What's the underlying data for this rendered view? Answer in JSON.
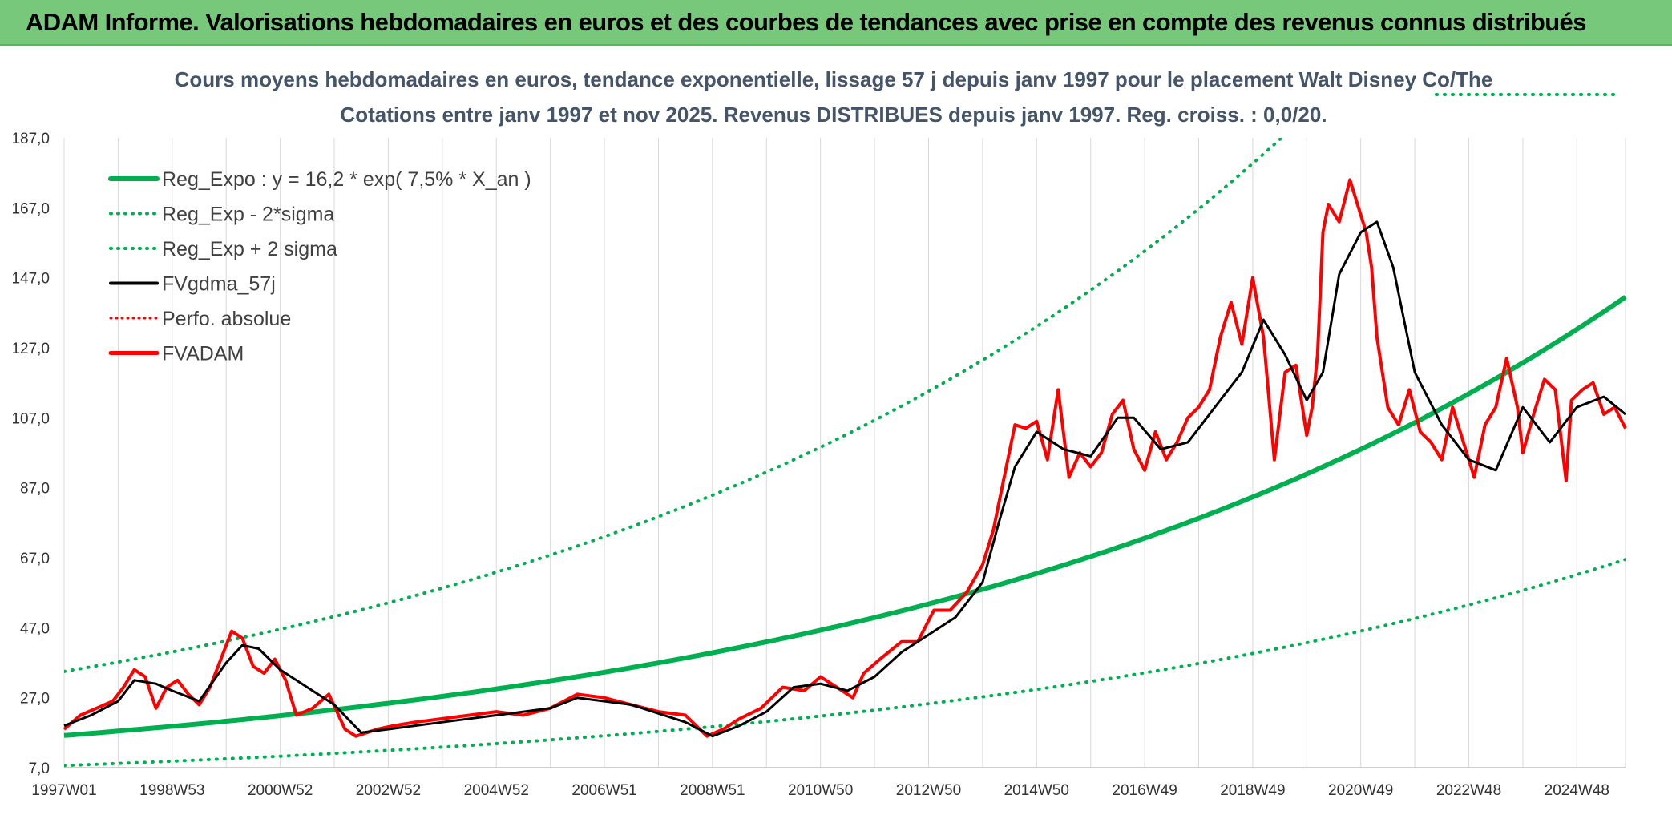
{
  "header": {
    "banner": "ADAM Informe. Valorisations hebdomadaires en euros et des courbes de tendances avec prise en compte des revenus connus distribués"
  },
  "colors": {
    "banner_bg": "#77c87a",
    "green": "#00b050",
    "black": "#000000",
    "red": "#ff0000",
    "grid": "#d9d9d9"
  },
  "chart_data": {
    "type": "line",
    "title": "Cours moyens hebdomadaires en euros, tendance exponentielle, lissage 57 j depuis janv 1997 pour le placement Walt Disney Co/The",
    "subtitle": "Cotations entre janv 1997 et nov 2025. Revenus DISTRIBUES depuis janv 1997. Reg. croiss. : 0,0/20.",
    "xlabel": "",
    "ylabel": "",
    "xlim": [
      1997.0,
      2025.9
    ],
    "ylim": [
      7,
      187
    ],
    "y_ticks": [
      7,
      27,
      47,
      67,
      87,
      107,
      127,
      147,
      167,
      187
    ],
    "y_tick_labels": [
      "7,0",
      "27,0",
      "47,0",
      "67,0",
      "87,0",
      "107,0",
      "127,0",
      "147,0",
      "167,0",
      "187,0"
    ],
    "x_ticks": [
      1997.0,
      1999.0,
      2001.0,
      2003.0,
      2005.0,
      2007.0,
      2009.0,
      2011.0,
      2013.0,
      2015.0,
      2017.0,
      2019.0,
      2021.0,
      2023.0,
      2025.0
    ],
    "x_tick_labels": [
      "1997W01",
      "1998W53",
      "2000W52",
      "2002W52",
      "2004W52",
      "2006W51",
      "2008W51",
      "2010W50",
      "2012W50",
      "2014W50",
      "2016W49",
      "2018W49",
      "2020W49",
      "2022W48",
      "2024W48"
    ],
    "legend": [
      "Reg_Expo : y = 16,2 * exp( 7,5% *  X_an )",
      "Reg_Exp - 2*sigma",
      "Reg_Exp + 2 sigma",
      "FVgdma_57j",
      "Perfo. absolue",
      "FVADAM"
    ],
    "legend_position": "top-left",
    "grid": "vertical",
    "regression": {
      "a": 16.2,
      "rate": 0.075,
      "lower_factor": 0.47,
      "upper_factor": 2.13
    },
    "series": [
      {
        "name": "FVADAM",
        "x": [
          1997.0,
          1997.3,
          1997.6,
          1997.9,
          1998.1,
          1998.3,
          1998.5,
          1998.7,
          1998.9,
          1999.1,
          1999.3,
          1999.5,
          1999.7,
          1999.9,
          2000.1,
          2000.3,
          2000.5,
          2000.7,
          2000.9,
          2001.1,
          2001.3,
          2001.6,
          2001.9,
          2002.2,
          2002.4,
          2002.6,
          2002.8,
          2003.1,
          2003.5,
          2004.0,
          2004.5,
          2005.0,
          2005.5,
          2006.0,
          2006.5,
          2007.0,
          2007.5,
          2008.0,
          2008.5,
          2008.9,
          2009.2,
          2009.5,
          2009.9,
          2010.3,
          2010.7,
          2011.0,
          2011.3,
          2011.6,
          2011.8,
          2012.1,
          2012.5,
          2012.8,
          2013.1,
          2013.4,
          2013.7,
          2014.0,
          2014.2,
          2014.4,
          2014.6,
          2014.8,
          2015.0,
          2015.2,
          2015.4,
          2015.6,
          2015.8,
          2016.0,
          2016.2,
          2016.4,
          2016.6,
          2016.8,
          2017.0,
          2017.2,
          2017.4,
          2017.6,
          2017.8,
          2018.0,
          2018.2,
          2018.4,
          2018.6,
          2018.8,
          2019.0,
          2019.2,
          2019.4,
          2019.6,
          2019.8,
          2020.0,
          2020.1,
          2020.2,
          2020.3,
          2020.4,
          2020.6,
          2020.8,
          2021.0,
          2021.1,
          2021.2,
          2021.3,
          2021.5,
          2021.7,
          2021.9,
          2022.1,
          2022.3,
          2022.5,
          2022.7,
          2022.9,
          2023.1,
          2023.3,
          2023.5,
          2023.7,
          2023.9,
          2024.0,
          2024.2,
          2024.4,
          2024.6,
          2024.8,
          2024.9,
          2025.1,
          2025.3,
          2025.5,
          2025.7,
          2025.9
        ],
        "values": [
          18,
          22,
          24,
          26,
          30,
          35,
          33,
          24,
          30,
          32,
          28,
          25,
          30,
          38,
          46,
          44,
          36,
          34,
          38,
          32,
          22,
          24,
          28,
          18,
          16,
          17,
          18,
          19,
          20,
          21,
          22,
          23,
          22,
          24,
          28,
          27,
          25,
          23,
          22,
          16,
          18,
          21,
          24,
          30,
          29,
          33,
          30,
          27,
          34,
          38,
          43,
          43,
          52,
          52,
          57,
          65,
          75,
          90,
          105,
          104,
          106,
          95,
          115,
          90,
          97,
          93,
          97,
          108,
          112,
          98,
          92,
          103,
          95,
          100,
          107,
          110,
          115,
          130,
          140,
          128,
          147,
          130,
          95,
          120,
          122,
          102,
          110,
          125,
          160,
          168,
          163,
          175,
          165,
          160,
          150,
          130,
          110,
          105,
          115,
          103,
          100,
          95,
          110,
          100,
          90,
          105,
          110,
          124,
          110,
          97,
          108,
          118,
          115,
          89,
          112,
          115,
          117,
          108,
          110,
          104
        ]
      },
      {
        "name": "FVgdma_57j",
        "x": [
          1997.0,
          1997.5,
          1998.0,
          1998.3,
          1998.7,
          1999.0,
          1999.5,
          2000.0,
          2000.3,
          2000.6,
          2001.0,
          2001.5,
          2002.0,
          2002.5,
          2003.0,
          2004.0,
          2005.0,
          2006.0,
          2006.5,
          2007.5,
          2008.5,
          2009.0,
          2009.5,
          2010.0,
          2010.5,
          2011.0,
          2011.5,
          2012.0,
          2012.5,
          2013.0,
          2013.5,
          2014.0,
          2014.3,
          2014.6,
          2015.0,
          2015.5,
          2016.0,
          2016.5,
          2016.8,
          2017.3,
          2017.8,
          2018.3,
          2018.8,
          2019.2,
          2019.6,
          2020.0,
          2020.3,
          2020.6,
          2021.0,
          2021.3,
          2021.6,
          2022.0,
          2022.5,
          2023.0,
          2023.5,
          2024.0,
          2024.5,
          2025.0,
          2025.5,
          2025.9
        ],
        "values": [
          19,
          22,
          26,
          32,
          31,
          29,
          26,
          37,
          42,
          41,
          35,
          30,
          25,
          17,
          18,
          20,
          22,
          24,
          27,
          25,
          20,
          16,
          19,
          23,
          30,
          31,
          29,
          33,
          40,
          45,
          50,
          60,
          77,
          93,
          103,
          98,
          96,
          107,
          107,
          98,
          100,
          110,
          120,
          135,
          125,
          112,
          120,
          148,
          160,
          163,
          150,
          120,
          105,
          95,
          92,
          110,
          100,
          110,
          113,
          108
        ]
      }
    ]
  }
}
